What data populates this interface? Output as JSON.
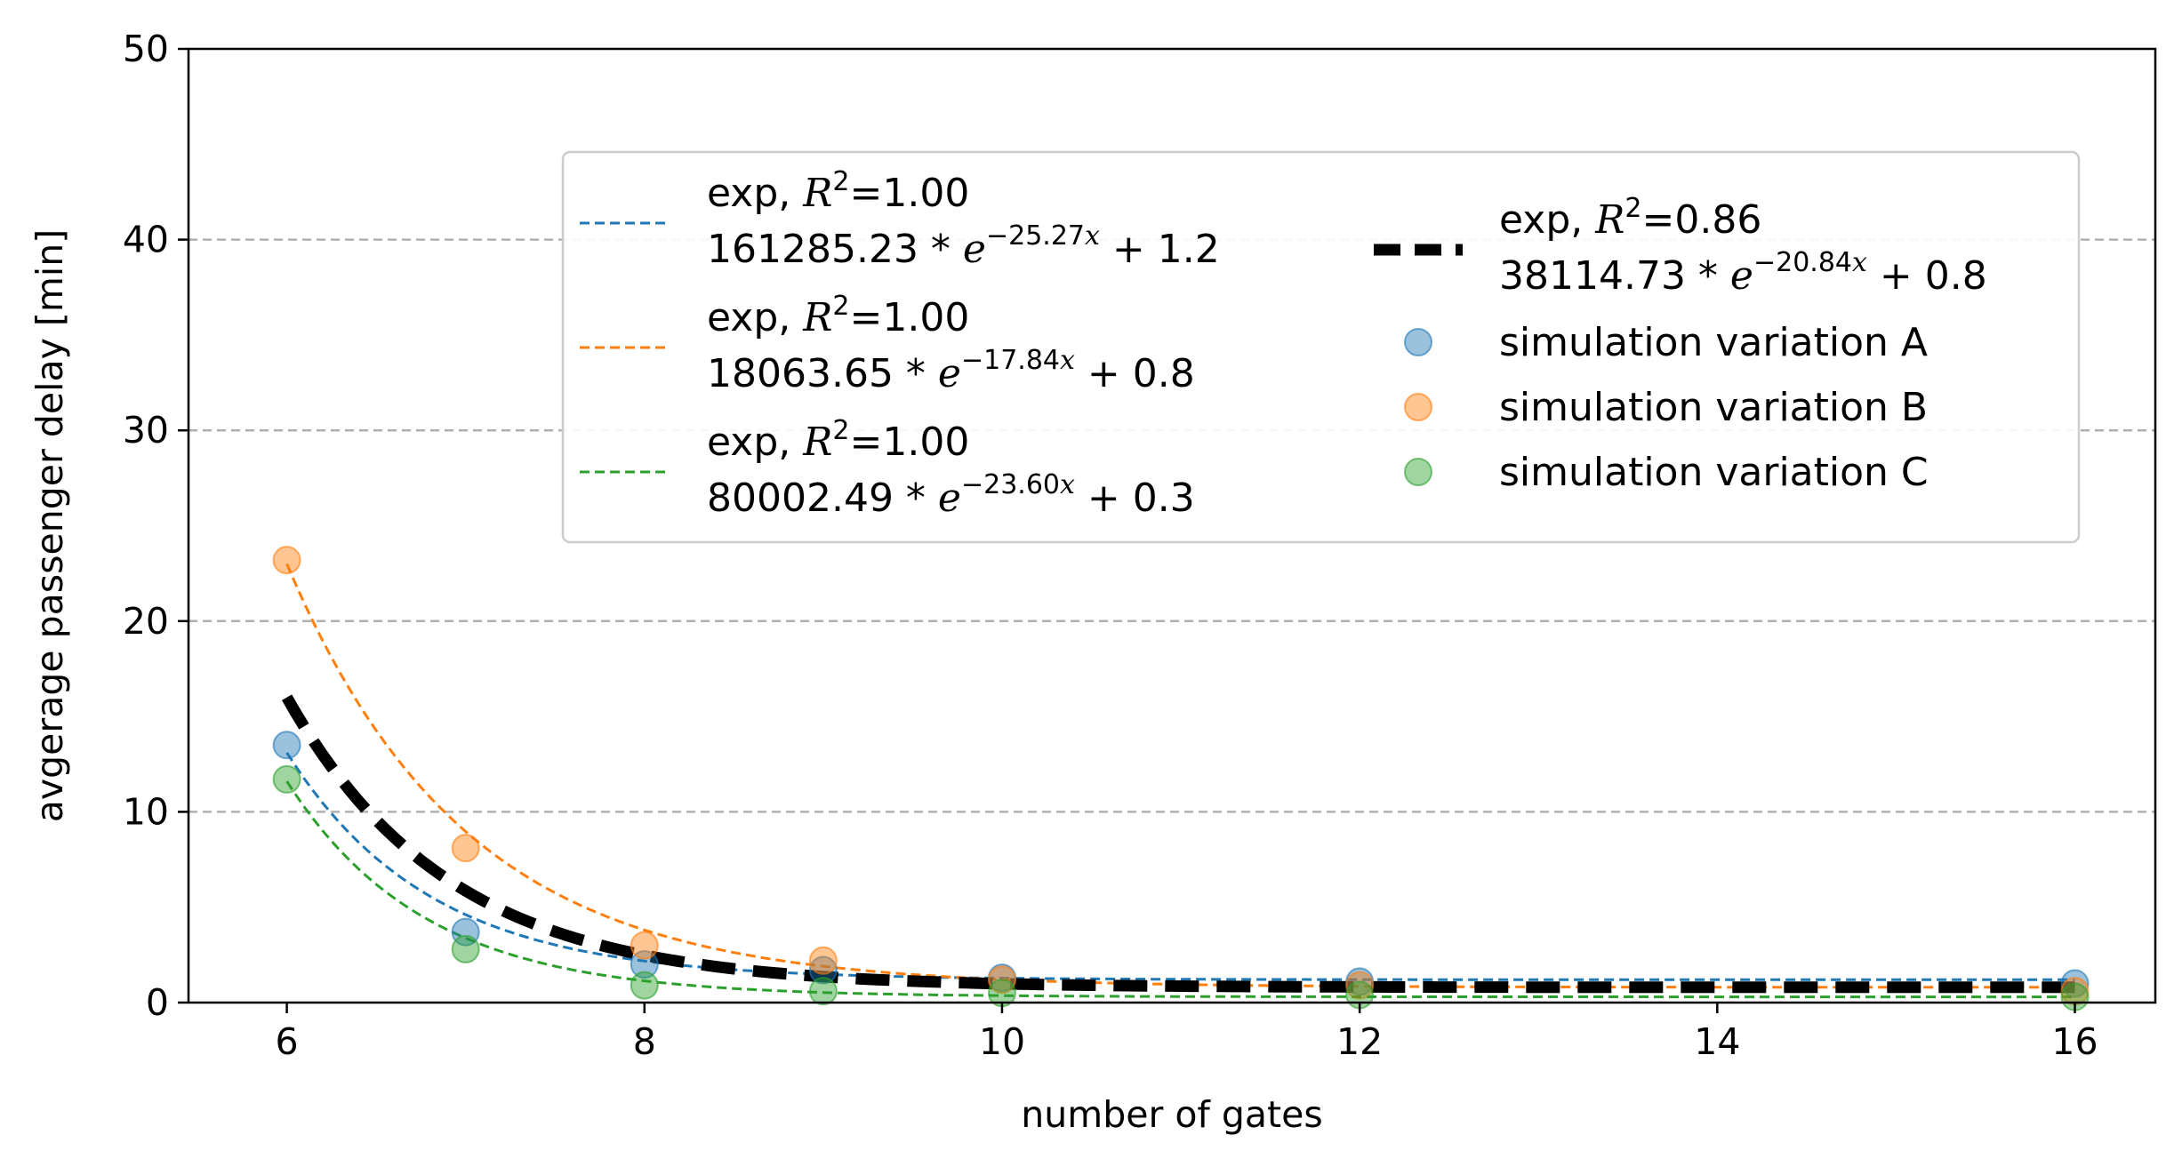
{
  "chart_data": {
    "type": "scatter",
    "title": "",
    "xlabel": "number of gates",
    "ylabel": "avgerage passenger delay [min]",
    "xlim": [
      5.45,
      16.45
    ],
    "ylim": [
      0,
      50
    ],
    "xticks": [
      6,
      8,
      10,
      12,
      14,
      16
    ],
    "yticks": [
      0,
      10,
      20,
      30,
      40,
      50
    ],
    "grid": "horizontal dashed",
    "legend_placement": "upper-center",
    "colors": {
      "A": "#1f77b4",
      "B": "#ff7f0e",
      "C": "#2ca02c",
      "combined": "#000000",
      "grid": "#b0b0b0"
    },
    "series": [
      {
        "name": "simulation variation A",
        "key": "A",
        "x": [
          6,
          7,
          8,
          9,
          10,
          12,
          16
        ],
        "y": [
          13.5,
          3.7,
          2.0,
          1.7,
          1.3,
          1.1,
          1.0
        ]
      },
      {
        "name": "simulation variation B",
        "key": "B",
        "x": [
          6,
          7,
          8,
          9,
          10,
          12,
          16
        ],
        "y": [
          23.2,
          8.1,
          3.0,
          2.2,
          1.2,
          0.9,
          0.6
        ]
      },
      {
        "name": "simulation variation C",
        "key": "C",
        "x": [
          6,
          7,
          8,
          9,
          10,
          12,
          16
        ],
        "y": [
          11.7,
          2.8,
          0.9,
          0.6,
          0.5,
          0.4,
          0.3
        ]
      }
    ],
    "fits": [
      {
        "key": "A",
        "style": "thin-dashed",
        "x_range": [
          6,
          16
        ],
        "y0": 13.1,
        "decay": 1.25,
        "asymptote": 1.2,
        "label_line1": "exp, ",
        "r2": "=1.00",
        "coef": "161285.23 * ",
        "exponent": "−25.27",
        "tail": " + 1.2"
      },
      {
        "key": "B",
        "style": "thin-dashed",
        "x_range": [
          6,
          16
        ],
        "y0": 23.0,
        "decay": 1.0,
        "asymptote": 0.8,
        "label_line1": "exp, ",
        "r2": "=1.00",
        "coef": "18063.65 * ",
        "exponent": "−17.84",
        "tail": " + 0.8"
      },
      {
        "key": "C",
        "style": "thin-dashed",
        "x_range": [
          6,
          16
        ],
        "y0": 11.6,
        "decay": 1.3,
        "asymptote": 0.3,
        "label_line1": "exp, ",
        "r2": "=1.00",
        "coef": "80002.49 * ",
        "exponent": "−23.60",
        "tail": " + 0.3"
      },
      {
        "key": "combined",
        "style": "thick-dashed",
        "x_range": [
          6,
          16
        ],
        "y0": 16.0,
        "decay": 1.1,
        "asymptote": 0.8,
        "label_line1": "exp, ",
        "r2": "=0.86",
        "coef": "38114.73 * ",
        "exponent": "−20.84",
        "tail": " + 0.8"
      }
    ]
  }
}
